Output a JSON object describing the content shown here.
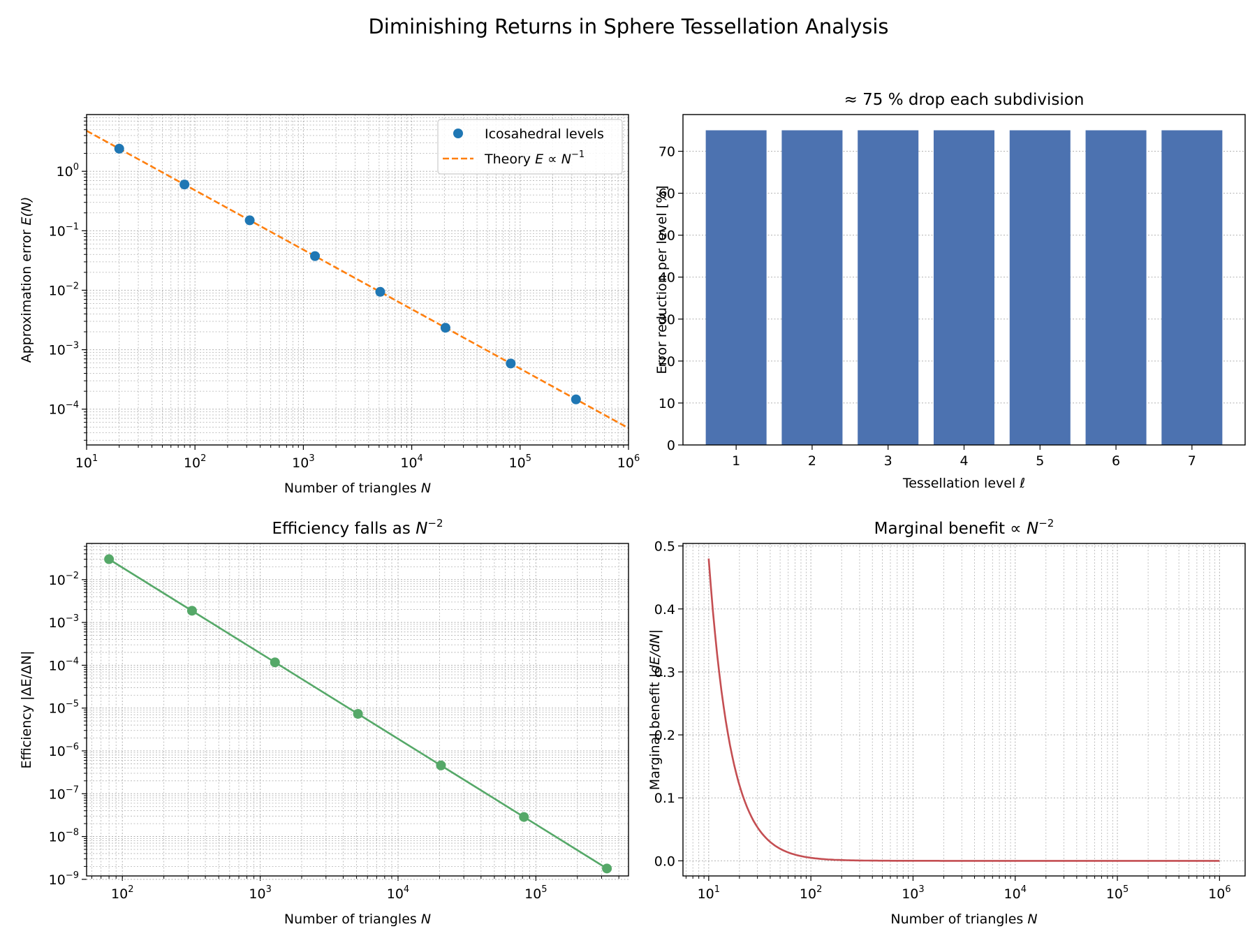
{
  "figure": {
    "title": "Diminishing Returns in Sphere Tessellation Analysis"
  },
  "chart_data": [
    {
      "id": "error",
      "type": "scatter",
      "title": "",
      "xlabel": "Number of triangles",
      "xlabel_var": "N",
      "ylabel": "Approximation error",
      "ylabel_var": "E(N)",
      "xscale": "log",
      "yscale": "log",
      "xlim": [
        10,
        1000000
      ],
      "ylim": [
        2.5e-05,
        9
      ],
      "xticks": [
        10,
        100,
        1000,
        10000,
        100000,
        1000000
      ],
      "xtick_labels": [
        [
          "10",
          "1"
        ],
        [
          "10",
          "2"
        ],
        [
          "10",
          "3"
        ],
        [
          "10",
          "4"
        ],
        [
          "10",
          "5"
        ],
        [
          "10",
          "6"
        ]
      ],
      "yticks": [
        0.0001,
        0.001,
        0.01,
        0.1,
        1
      ],
      "ytick_labels": [
        [
          "10",
          "−4"
        ],
        [
          "10",
          "−3"
        ],
        [
          "10",
          "−2"
        ],
        [
          "10",
          "−1"
        ],
        [
          "10",
          "0"
        ]
      ],
      "grid": true,
      "legend": "top-right",
      "points": {
        "name": "Icosahedral levels",
        "color": "#1f77b4",
        "x": [
          20,
          80,
          320,
          1280,
          5120,
          20480,
          81920,
          327680
        ],
        "y": [
          2.4,
          0.6,
          0.15,
          0.0375,
          0.0094,
          0.00234,
          0.000586,
          0.000146
        ]
      },
      "line": {
        "name": "Theory",
        "name_math": "E ∝ N",
        "name_exp": "−1",
        "color": "#ff7f0e",
        "x": [
          10,
          1000000
        ],
        "y": [
          4.8,
          4.8e-05
        ]
      }
    },
    {
      "id": "reduction",
      "type": "bar",
      "title": "≈ 75 % drop each subdivision",
      "xlabel": "Tessellation level",
      "xlabel_var": "ℓ",
      "ylabel": "Error reduction per level [%]",
      "color": "#4c72b0",
      "categories": [
        "1",
        "2",
        "3",
        "4",
        "5",
        "6",
        "7"
      ],
      "values": [
        75,
        75,
        75,
        75,
        75,
        75,
        75
      ],
      "ylim": [
        0,
        78.75
      ],
      "yticks": [
        0,
        10,
        20,
        30,
        40,
        50,
        60,
        70
      ],
      "grid": true
    },
    {
      "id": "efficiency",
      "type": "line",
      "title": "Efficiency falls as",
      "title_var": "N",
      "title_exp": "−2",
      "xlabel": "Number of triangles",
      "xlabel_var": "N",
      "ylabel": "Efficiency |ΔE/ΔN|",
      "xscale": "log",
      "yscale": "log",
      "xlim": [
        55,
        470000
      ],
      "ylim": [
        1.2e-09,
        0.07
      ],
      "xticks": [
        100,
        1000,
        10000,
        100000
      ],
      "xtick_labels": [
        [
          "10",
          "2"
        ],
        [
          "10",
          "3"
        ],
        [
          "10",
          "4"
        ],
        [
          "10",
          "5"
        ]
      ],
      "yticks": [
        1e-09,
        1e-08,
        1e-07,
        1e-06,
        1e-05,
        0.0001,
        0.001,
        0.01
      ],
      "ytick_labels": [
        [
          "10",
          "−9"
        ],
        [
          "10",
          "−8"
        ],
        [
          "10",
          "−7"
        ],
        [
          "10",
          "−6"
        ],
        [
          "10",
          "−5"
        ],
        [
          "10",
          "−4"
        ],
        [
          "10",
          "−3"
        ],
        [
          "10",
          "−2"
        ]
      ],
      "grid": true,
      "color": "#55a868",
      "x": [
        80,
        320,
        1280,
        5120,
        20480,
        81920,
        327680
      ],
      "y": [
        0.03,
        0.001875,
        0.000117,
        7.32e-06,
        4.58e-07,
        2.86e-08,
        1.79e-09
      ]
    },
    {
      "id": "marginal",
      "type": "line",
      "title": "Marginal benefit ∝",
      "title_var": "N",
      "title_exp": "−2",
      "xlabel": "Number of triangles",
      "xlabel_var": "N",
      "ylabel": "Marginal benefit",
      "ylabel_var": "|dE/dN|",
      "xscale": "log",
      "yscale": "linear",
      "xlim": [
        5.6,
        1780000
      ],
      "ylim": [
        -0.024,
        0.504
      ],
      "xticks": [
        10,
        100,
        1000,
        10000,
        100000,
        1000000
      ],
      "xtick_labels": [
        [
          "10",
          "1"
        ],
        [
          "10",
          "2"
        ],
        [
          "10",
          "3"
        ],
        [
          "10",
          "4"
        ],
        [
          "10",
          "5"
        ],
        [
          "10",
          "6"
        ]
      ],
      "yticks": [
        0.0,
        0.1,
        0.2,
        0.3,
        0.4,
        0.5
      ],
      "ytick_labels": [
        "0.0",
        "0.1",
        "0.2",
        "0.3",
        "0.4",
        "0.5"
      ],
      "grid": true,
      "color": "#c44e52",
      "curve": {
        "formula": "y = 48 / x^2",
        "x_range": [
          10,
          1000000
        ]
      }
    }
  ]
}
